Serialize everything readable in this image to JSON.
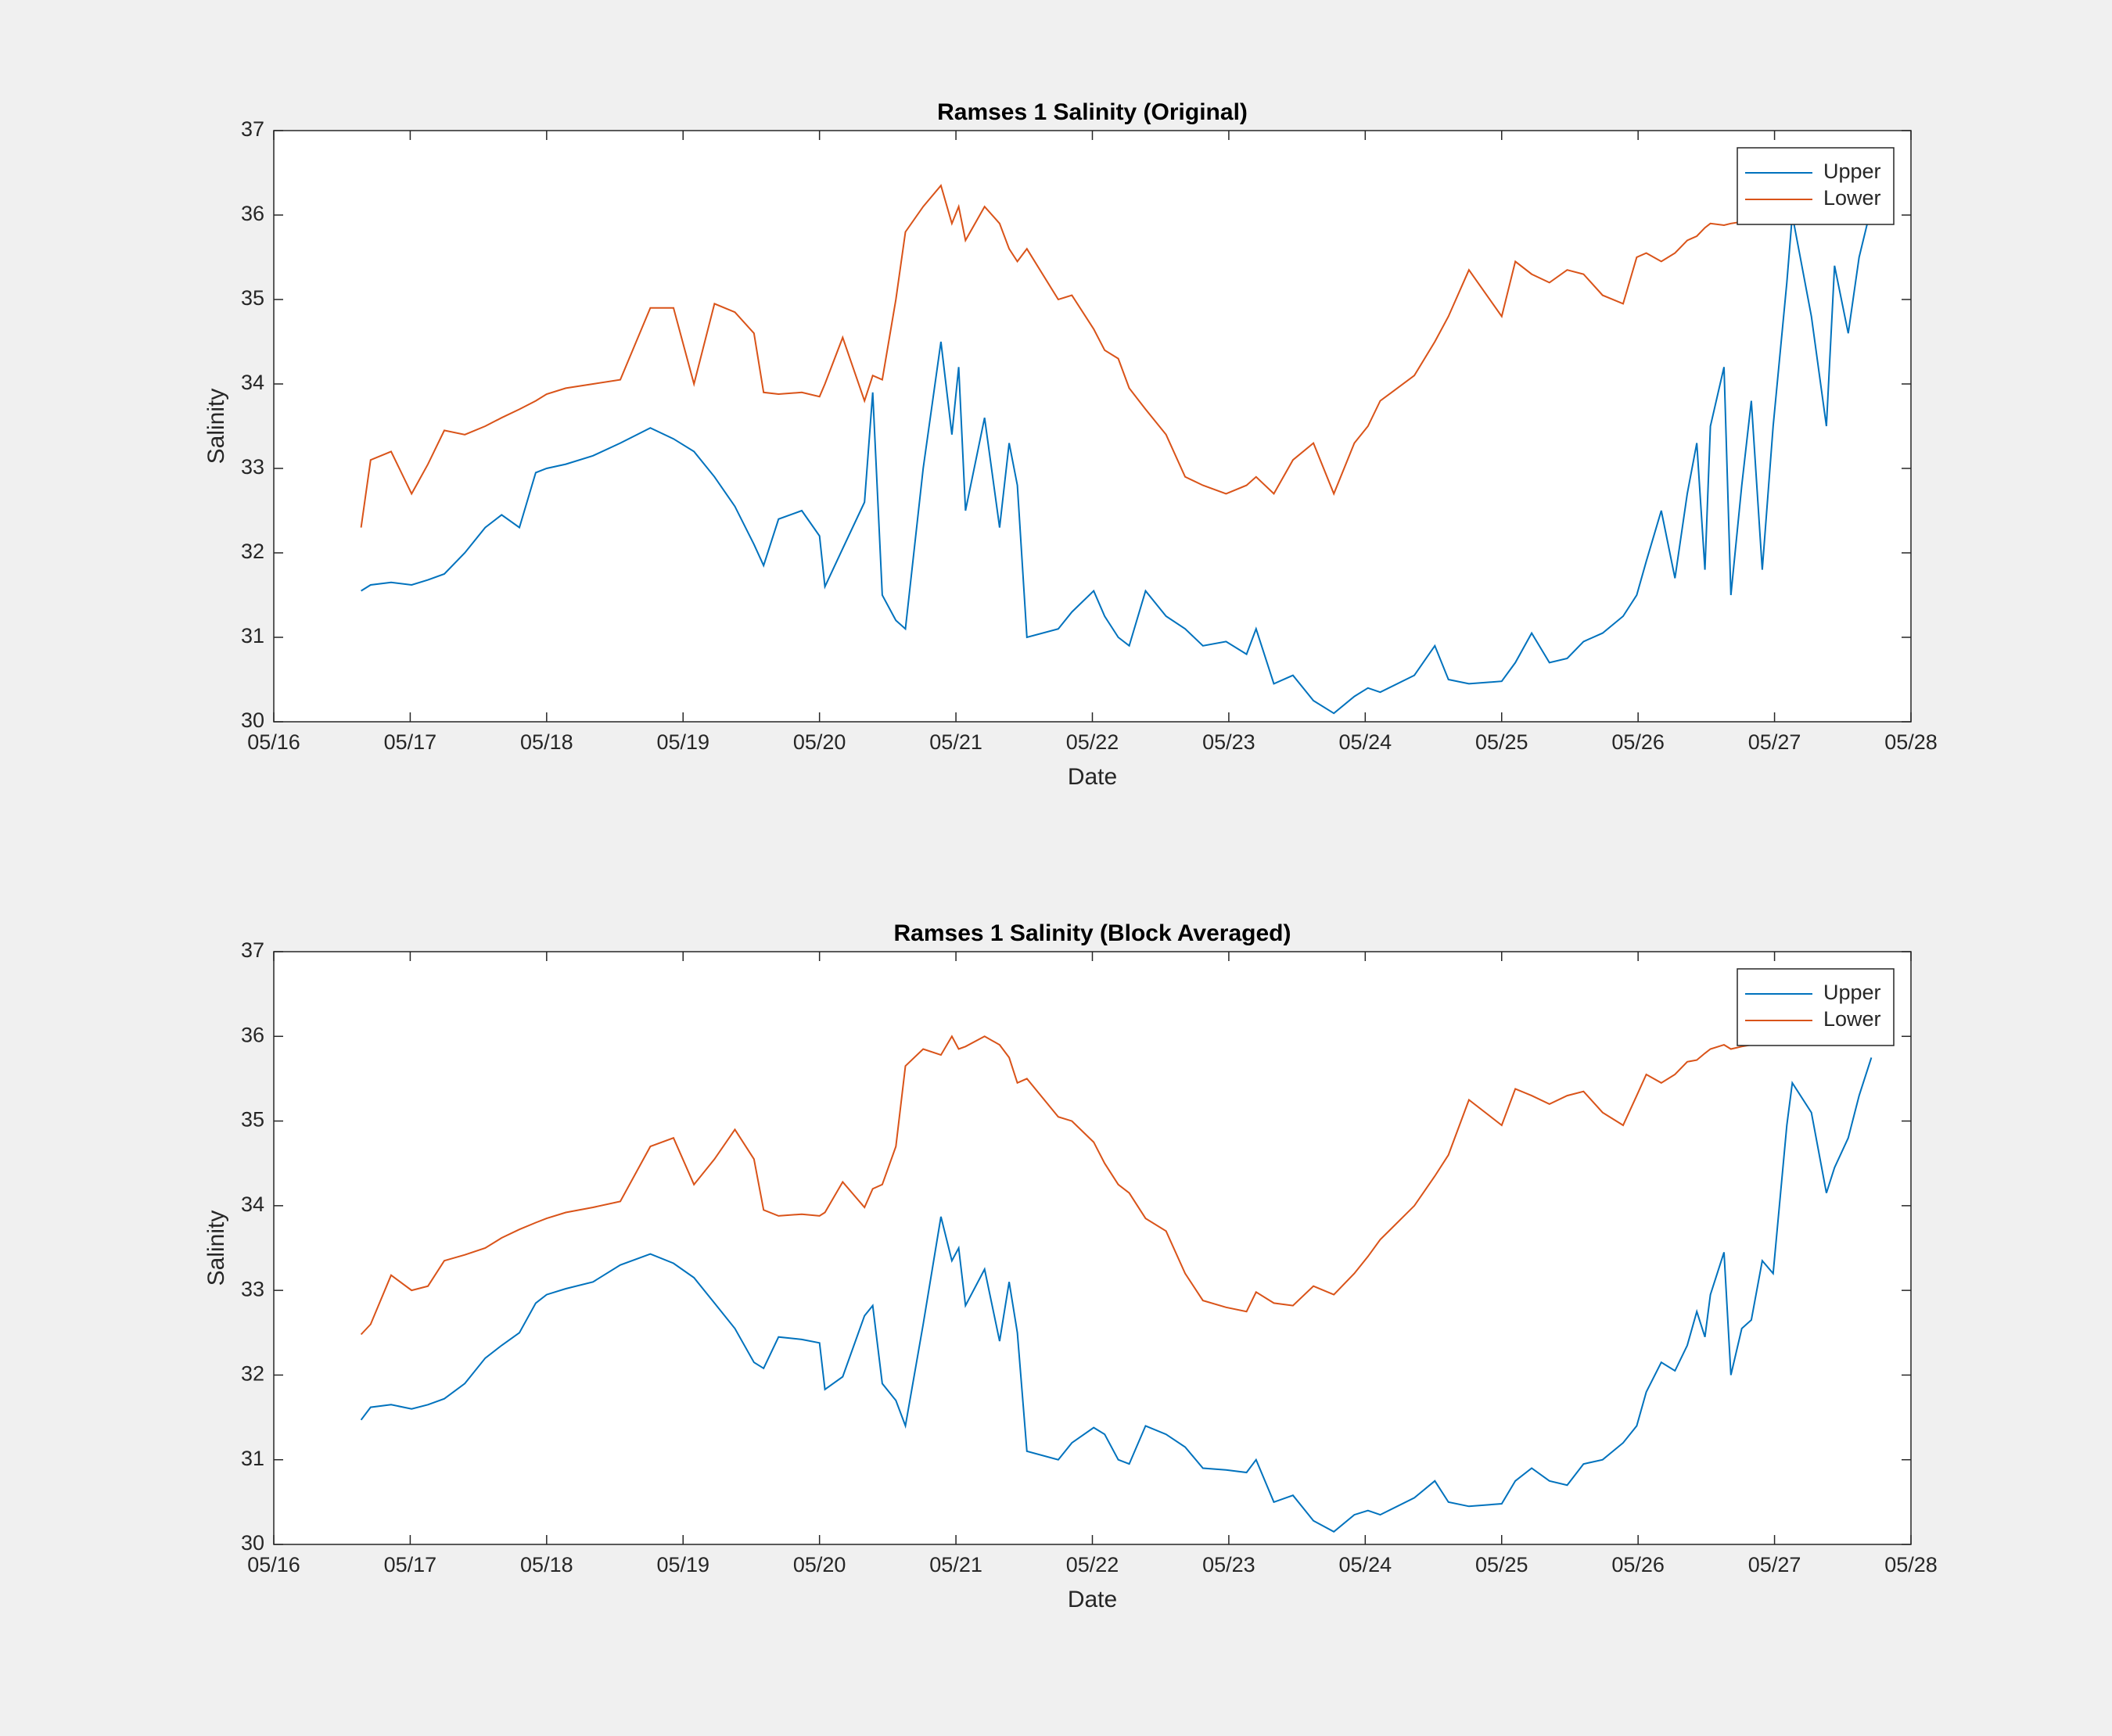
{
  "chart_data": [
    {
      "type": "line",
      "title": "Ramses 1 Salinity (Original)",
      "x_label": "Date",
      "y_label": "Salinity",
      "x": [
        16.64,
        16.71,
        16.86,
        17.01,
        17.13,
        17.25,
        17.4,
        17.55,
        17.67,
        17.8,
        17.92,
        18.0,
        18.14,
        18.34,
        18.54,
        18.76,
        18.93,
        19.08,
        19.23,
        19.38,
        19.52,
        19.59,
        19.7,
        19.87,
        20.0,
        20.04,
        20.17,
        20.33,
        20.39,
        20.46,
        20.56,
        20.63,
        20.76,
        20.89,
        20.97,
        21.02,
        21.07,
        21.21,
        21.32,
        21.39,
        21.45,
        21.52,
        21.75,
        21.85,
        22.01,
        22.09,
        22.19,
        22.27,
        22.39,
        22.54,
        22.68,
        22.81,
        22.98,
        23.13,
        23.2,
        23.33,
        23.47,
        23.62,
        23.77,
        23.92,
        24.02,
        24.11,
        24.36,
        24.51,
        24.61,
        24.76,
        25.0,
        25.1,
        25.22,
        25.35,
        25.48,
        25.6,
        25.74,
        25.89,
        25.99,
        26.06,
        26.17,
        26.27,
        26.36,
        26.43,
        26.49,
        26.53,
        26.63,
        26.68,
        26.76,
        26.83,
        26.91,
        26.99,
        27.09,
        27.13,
        27.27,
        27.38,
        27.44,
        27.54,
        27.62,
        27.71
      ],
      "series": [
        {
          "name": "Upper",
          "color": "#0072bd",
          "values": [
            31.55,
            31.62,
            31.65,
            31.62,
            31.68,
            31.75,
            32.0,
            32.3,
            32.45,
            32.3,
            32.95,
            33.0,
            33.05,
            33.15,
            33.3,
            33.48,
            33.35,
            33.2,
            32.9,
            32.55,
            32.1,
            31.85,
            32.4,
            32.5,
            32.2,
            31.6,
            32.05,
            32.6,
            33.9,
            31.5,
            31.2,
            31.1,
            33.0,
            34.5,
            33.4,
            34.2,
            32.5,
            33.6,
            32.3,
            33.3,
            32.8,
            31.0,
            31.1,
            31.3,
            31.55,
            31.25,
            31.0,
            30.9,
            31.55,
            31.25,
            31.1,
            30.9,
            30.95,
            30.8,
            31.1,
            30.45,
            30.55,
            30.25,
            30.1,
            30.3,
            30.4,
            30.35,
            30.55,
            30.9,
            30.5,
            30.45,
            30.48,
            30.7,
            31.05,
            30.7,
            30.75,
            30.95,
            31.05,
            31.25,
            31.5,
            31.9,
            32.5,
            31.7,
            32.7,
            33.3,
            31.8,
            33.5,
            34.2,
            31.5,
            32.8,
            33.8,
            31.8,
            33.5,
            35.2,
            36.0,
            34.8,
            33.5,
            35.4,
            34.6,
            35.5,
            36.1
          ]
        },
        {
          "name": "Lower",
          "color": "#d95319",
          "values": [
            32.3,
            33.1,
            33.2,
            32.7,
            33.05,
            33.45,
            33.4,
            33.5,
            33.6,
            33.7,
            33.8,
            33.88,
            33.95,
            34.0,
            34.05,
            34.9,
            34.9,
            34.0,
            34.95,
            34.85,
            34.6,
            33.9,
            33.88,
            33.9,
            33.85,
            34.0,
            34.55,
            33.8,
            34.1,
            34.05,
            35.0,
            35.8,
            36.1,
            36.35,
            35.9,
            36.1,
            35.7,
            36.1,
            35.9,
            35.6,
            35.45,
            35.6,
            35.0,
            35.05,
            34.65,
            34.4,
            34.3,
            33.95,
            33.7,
            33.4,
            32.9,
            32.8,
            32.7,
            32.8,
            32.9,
            32.7,
            33.1,
            33.3,
            32.7,
            33.3,
            33.5,
            33.8,
            34.1,
            34.5,
            34.8,
            35.35,
            34.8,
            35.45,
            35.3,
            35.2,
            35.35,
            35.3,
            35.05,
            34.95,
            35.5,
            35.55,
            35.45,
            35.55,
            35.7,
            35.75,
            35.85,
            35.9,
            35.88,
            35.9,
            35.92,
            35.95,
            35.97,
            36.0,
            36.05,
            36.08,
            36.1,
            null,
            null,
            null,
            null,
            null
          ]
        }
      ],
      "xlim": [
        16,
        28
      ],
      "xticks": [
        {
          "value": 16,
          "label": "05/16"
        },
        {
          "value": 17,
          "label": "05/17"
        },
        {
          "value": 18,
          "label": "05/18"
        },
        {
          "value": 19,
          "label": "05/19"
        },
        {
          "value": 20,
          "label": "05/20"
        },
        {
          "value": 21,
          "label": "05/21"
        },
        {
          "value": 22,
          "label": "05/22"
        },
        {
          "value": 23,
          "label": "05/23"
        },
        {
          "value": 24,
          "label": "05/24"
        },
        {
          "value": 25,
          "label": "05/25"
        },
        {
          "value": 26,
          "label": "05/26"
        },
        {
          "value": 27,
          "label": "05/27"
        },
        {
          "value": 28,
          "label": "05/28"
        }
      ],
      "ylim": [
        30,
        37
      ],
      "yticks": [
        30,
        31,
        32,
        33,
        34,
        35,
        36,
        37
      ],
      "grid": false,
      "legend": "upper right"
    },
    {
      "type": "line",
      "title": "Ramses 1 Salinity (Block Averaged)",
      "x_label": "Date",
      "y_label": "Salinity",
      "x": [
        16.64,
        16.71,
        16.86,
        17.01,
        17.13,
        17.25,
        17.4,
        17.55,
        17.67,
        17.8,
        17.92,
        18.0,
        18.14,
        18.34,
        18.54,
        18.76,
        18.93,
        19.08,
        19.23,
        19.38,
        19.52,
        19.59,
        19.7,
        19.87,
        20.0,
        20.04,
        20.17,
        20.33,
        20.39,
        20.46,
        20.56,
        20.63,
        20.76,
        20.89,
        20.97,
        21.02,
        21.07,
        21.21,
        21.32,
        21.39,
        21.45,
        21.52,
        21.75,
        21.85,
        22.01,
        22.09,
        22.19,
        22.27,
        22.39,
        22.54,
        22.68,
        22.81,
        22.98,
        23.13,
        23.2,
        23.33,
        23.47,
        23.62,
        23.77,
        23.92,
        24.02,
        24.11,
        24.36,
        24.51,
        24.61,
        24.76,
        25.0,
        25.1,
        25.22,
        25.35,
        25.48,
        25.6,
        25.74,
        25.89,
        25.99,
        26.06,
        26.17,
        26.27,
        26.36,
        26.43,
        26.49,
        26.53,
        26.63,
        26.68,
        26.76,
        26.83,
        26.91,
        26.99,
        27.09,
        27.13,
        27.27,
        27.38,
        27.44,
        27.54,
        27.62,
        27.71
      ],
      "series": [
        {
          "name": "Upper",
          "color": "#0072bd",
          "values": [
            31.47,
            31.62,
            31.65,
            31.6,
            31.65,
            31.72,
            31.9,
            32.2,
            32.35,
            32.5,
            32.85,
            32.95,
            33.02,
            33.1,
            33.3,
            33.43,
            33.32,
            33.15,
            32.85,
            32.55,
            32.15,
            32.08,
            32.45,
            32.42,
            32.38,
            31.83,
            31.98,
            32.7,
            32.82,
            31.9,
            31.7,
            31.4,
            32.6,
            33.87,
            33.35,
            33.5,
            32.82,
            33.25,
            32.4,
            33.1,
            32.5,
            31.1,
            31.0,
            31.2,
            31.38,
            31.3,
            31.0,
            30.95,
            31.4,
            31.3,
            31.15,
            30.9,
            30.88,
            30.85,
            31.0,
            30.5,
            30.58,
            30.28,
            30.15,
            30.35,
            30.4,
            30.35,
            30.55,
            30.75,
            30.5,
            30.45,
            30.48,
            30.75,
            30.9,
            30.75,
            30.7,
            30.95,
            31.0,
            31.2,
            31.4,
            31.8,
            32.15,
            32.05,
            32.35,
            32.75,
            32.45,
            32.95,
            33.45,
            32.0,
            32.55,
            32.65,
            33.35,
            33.2,
            34.95,
            35.45,
            35.1,
            34.15,
            34.45,
            34.8,
            35.3,
            35.75
          ]
        },
        {
          "name": "Lower",
          "color": "#d95319",
          "values": [
            32.48,
            32.6,
            33.18,
            33.0,
            33.05,
            33.35,
            33.42,
            33.5,
            33.62,
            33.72,
            33.8,
            33.85,
            33.92,
            33.98,
            34.05,
            34.7,
            34.8,
            34.25,
            34.55,
            34.9,
            34.55,
            33.95,
            33.88,
            33.9,
            33.88,
            33.92,
            34.28,
            33.98,
            34.2,
            34.25,
            34.7,
            35.65,
            35.85,
            35.78,
            36.0,
            35.85,
            35.88,
            36.0,
            35.9,
            35.75,
            35.45,
            35.5,
            35.05,
            35.0,
            34.75,
            34.5,
            34.25,
            34.15,
            33.85,
            33.7,
            33.2,
            32.88,
            32.8,
            32.75,
            32.98,
            32.85,
            32.82,
            33.05,
            32.95,
            33.2,
            33.4,
            33.6,
            34.0,
            34.35,
            34.6,
            35.25,
            34.95,
            35.38,
            35.3,
            35.2,
            35.3,
            35.35,
            35.1,
            34.95,
            35.3,
            35.55,
            35.45,
            35.55,
            35.7,
            35.72,
            35.8,
            35.85,
            35.9,
            35.85,
            35.88,
            35.9,
            35.95,
            35.97,
            36.0,
            36.02,
            36.05,
            null,
            null,
            null,
            null,
            null
          ]
        }
      ],
      "xlim": [
        16,
        28
      ],
      "xticks": [
        {
          "value": 16,
          "label": "05/16"
        },
        {
          "value": 17,
          "label": "05/17"
        },
        {
          "value": 18,
          "label": "05/18"
        },
        {
          "value": 19,
          "label": "05/19"
        },
        {
          "value": 20,
          "label": "05/20"
        },
        {
          "value": 21,
          "label": "05/21"
        },
        {
          "value": 22,
          "label": "05/22"
        },
        {
          "value": 23,
          "label": "05/23"
        },
        {
          "value": 24,
          "label": "05/24"
        },
        {
          "value": 25,
          "label": "05/25"
        },
        {
          "value": 26,
          "label": "05/26"
        },
        {
          "value": 27,
          "label": "05/27"
        },
        {
          "value": 28,
          "label": "05/28"
        }
      ],
      "ylim": [
        30,
        37
      ],
      "yticks": [
        30,
        31,
        32,
        33,
        34,
        35,
        36,
        37
      ],
      "grid": false,
      "legend": "upper right"
    }
  ]
}
